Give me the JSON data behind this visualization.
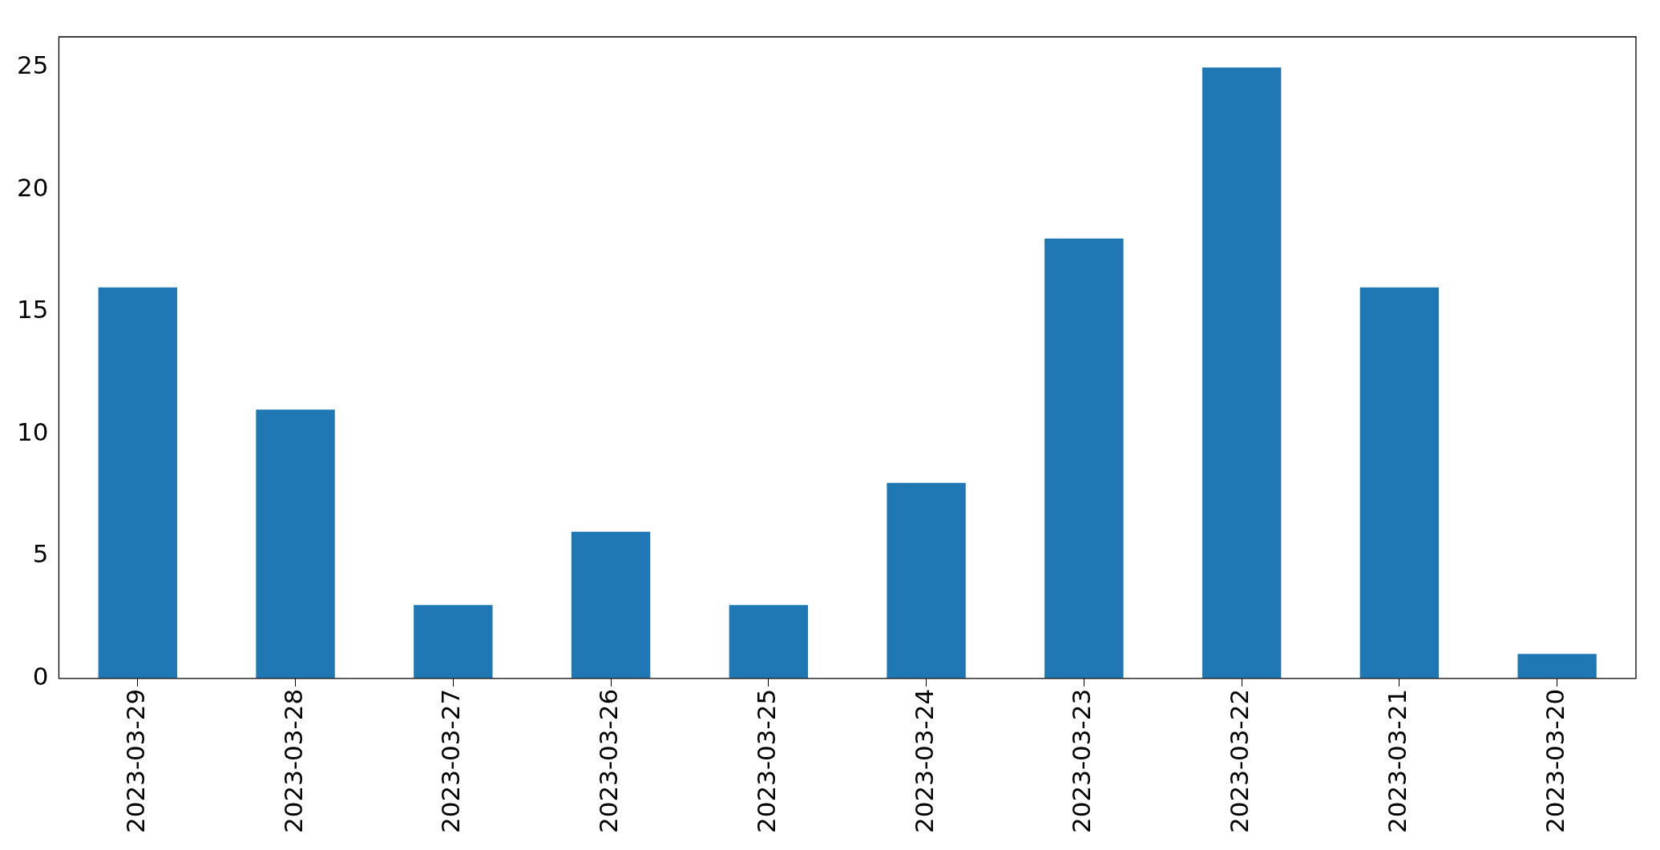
{
  "chart_data": {
    "type": "bar",
    "categories": [
      "2023-03-29",
      "2023-03-28",
      "2023-03-27",
      "2023-03-26",
      "2023-03-25",
      "2023-03-24",
      "2023-03-23",
      "2023-03-22",
      "2023-03-21",
      "2023-03-20"
    ],
    "values": [
      16,
      11,
      3,
      6,
      3,
      8,
      18,
      25,
      16,
      1
    ],
    "color": "#1f77b4",
    "ylim": [
      0,
      26.25
    ],
    "yticks": [
      0,
      5,
      10,
      15,
      20,
      25
    ],
    "grid": false,
    "legend": false
  }
}
